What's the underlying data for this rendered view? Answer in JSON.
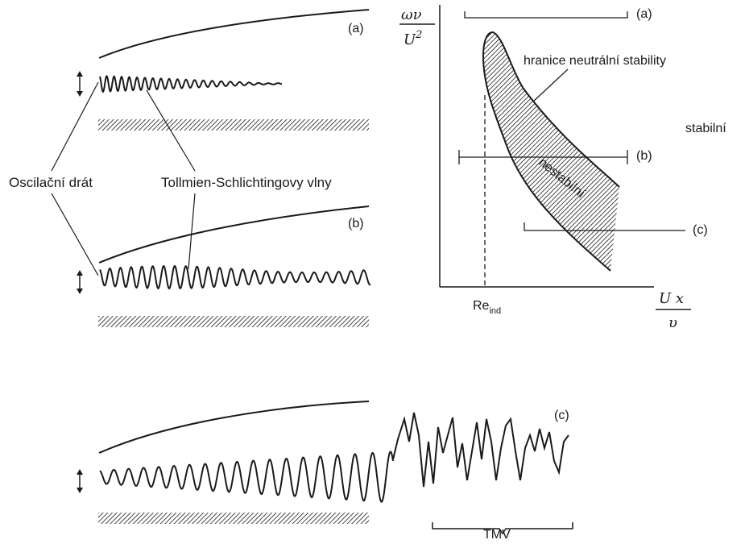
{
  "left": {
    "panel_a": {
      "tag": "(a)"
    },
    "panel_b": {
      "tag": "(b)"
    },
    "panel_c": {
      "tag": "(c)",
      "tmv_label": "TMV"
    },
    "wire_label": "Oscilační drát",
    "ts_waves_label": "Tollmien-Schlichtingovy vlny"
  },
  "chart": {
    "ylabel_num": "ων",
    "ylabel_den_base": "U",
    "ylabel_den_exp": "2",
    "xlabel_num": "U x",
    "xlabel_den": "υ",
    "re_ind_base": "Re",
    "re_ind_sub": "ind",
    "boundary_label": "hranice neutrální stability",
    "stable_label": "stabilní",
    "unstable_label": "nestabilní",
    "line_a_tag": "(a)",
    "line_b_tag": "(b)",
    "line_c_tag": "(c)"
  },
  "colors": {
    "ink": "#1a1a1a",
    "background": "#ffffff"
  }
}
